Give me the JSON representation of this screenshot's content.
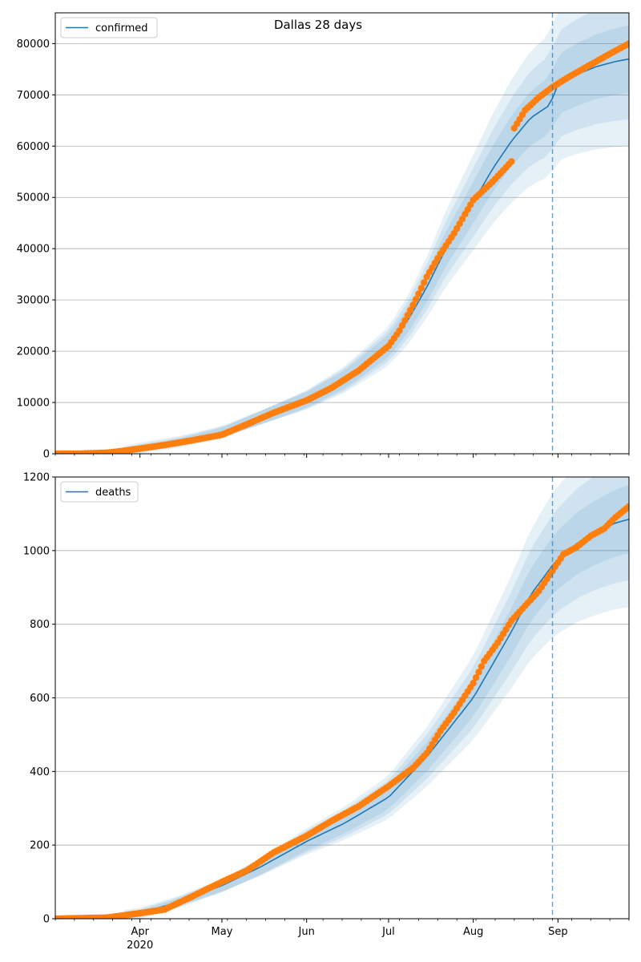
{
  "colors": {
    "model_line": "#1f77b4",
    "band": "#1f77b4",
    "observed_points": "#ff7f0e",
    "grid": "#b0b0b0",
    "forecast_marker": "#1f77b4"
  },
  "chart_data": [
    {
      "type": "line",
      "title": "Dallas 28 days",
      "legend_position": "top-left",
      "grid": "horizontal",
      "x_start": "2020-03-01",
      "x_end": "2020-09-27",
      "forecast_date": "2020-08-30",
      "ylim": [
        0,
        86000
      ],
      "y_ticks": [
        0,
        10000,
        20000,
        30000,
        40000,
        50000,
        60000,
        70000,
        80000
      ],
      "x_tick_labels": [
        {
          "date": "2020-04-01",
          "label": "Apr"
        },
        {
          "date": "2020-05-01",
          "label": "May"
        },
        {
          "date": "2020-06-01",
          "label": "Jun"
        },
        {
          "date": "2020-07-01",
          "label": "Jul"
        },
        {
          "date": "2020-08-01",
          "label": "Aug"
        },
        {
          "date": "2020-09-01",
          "label": "Sep"
        }
      ],
      "year_label": "",
      "series": [
        {
          "name": "confirmed",
          "kind": "model",
          "points": [
            [
              "2020-03-01",
              0
            ],
            [
              "2020-03-15",
              80
            ],
            [
              "2020-03-25",
              400
            ],
            [
              "2020-04-01",
              1100
            ],
            [
              "2020-04-15",
              2300
            ],
            [
              "2020-05-01",
              4200
            ],
            [
              "2020-05-15",
              7000
            ],
            [
              "2020-06-01",
              10500
            ],
            [
              "2020-06-15",
              14500
            ],
            [
              "2020-07-01",
              21000
            ],
            [
              "2020-07-08",
              26000
            ],
            [
              "2020-07-15",
              32500
            ],
            [
              "2020-07-22",
              40000
            ],
            [
              "2020-08-01",
              49000
            ],
            [
              "2020-08-08",
              55500
            ],
            [
              "2020-08-15",
              61000
            ],
            [
              "2020-08-22",
              65500
            ],
            [
              "2020-08-29",
              68000
            ],
            [
              "2020-09-01",
              72000
            ],
            [
              "2020-09-08",
              74000
            ],
            [
              "2020-09-15",
              75500
            ],
            [
              "2020-09-22",
              76500
            ],
            [
              "2020-09-27",
              77000
            ]
          ]
        },
        {
          "name": "",
          "kind": "observed",
          "points": [
            [
              "2020-03-01",
              0
            ],
            [
              "2020-03-10",
              20
            ],
            [
              "2020-03-20",
              200
            ],
            [
              "2020-03-25",
              500
            ],
            [
              "2020-04-01",
              1000
            ],
            [
              "2020-04-10",
              1700
            ],
            [
              "2020-04-20",
              2600
            ],
            [
              "2020-05-01",
              3700
            ],
            [
              "2020-05-10",
              5700
            ],
            [
              "2020-05-20",
              8000
            ],
            [
              "2020-06-01",
              10400
            ],
            [
              "2020-06-10",
              12800
            ],
            [
              "2020-06-20",
              16200
            ],
            [
              "2020-07-01",
              21000
            ],
            [
              "2020-07-05",
              24000
            ],
            [
              "2020-07-10",
              29000
            ],
            [
              "2020-07-15",
              34500
            ],
            [
              "2020-07-20",
              39000
            ],
            [
              "2020-07-25",
              43000
            ],
            [
              "2020-08-01",
              49500
            ],
            [
              "2020-08-08",
              53000
            ],
            [
              "2020-08-15",
              57000
            ],
            [
              "2020-08-16",
              63500
            ],
            [
              "2020-08-20",
              67000
            ],
            [
              "2020-08-25",
              69500
            ],
            [
              "2020-08-30",
              71500
            ],
            [
              "2020-09-05",
              73500
            ],
            [
              "2020-09-10",
              75000
            ],
            [
              "2020-09-15",
              76500
            ],
            [
              "2020-09-20",
              78000
            ],
            [
              "2020-09-27",
              80000
            ]
          ]
        }
      ],
      "bands": {
        "outer_end": 86000,
        "widths": [
          0.06,
          0.12,
          0.18
        ]
      }
    },
    {
      "type": "line",
      "title": "",
      "legend_position": "top-left",
      "grid": "horizontal",
      "x_start": "2020-03-01",
      "x_end": "2020-09-27",
      "forecast_date": "2020-08-30",
      "ylim": [
        0,
        1200
      ],
      "y_ticks": [
        0,
        200,
        400,
        600,
        800,
        1000,
        1200
      ],
      "x_tick_labels": [
        {
          "date": "2020-04-01",
          "label": "Apr"
        },
        {
          "date": "2020-05-01",
          "label": "May"
        },
        {
          "date": "2020-06-01",
          "label": "Jun"
        },
        {
          "date": "2020-07-01",
          "label": "Jul"
        },
        {
          "date": "2020-08-01",
          "label": "Aug"
        },
        {
          "date": "2020-09-01",
          "label": "Sep"
        }
      ],
      "year_label": "2020",
      "series": [
        {
          "name": "deaths",
          "kind": "model",
          "points": [
            [
              "2020-03-01",
              0
            ],
            [
              "2020-03-20",
              3
            ],
            [
              "2020-04-01",
              15
            ],
            [
              "2020-04-15",
              45
            ],
            [
              "2020-05-01",
              90
            ],
            [
              "2020-05-15",
              140
            ],
            [
              "2020-06-01",
              210
            ],
            [
              "2020-06-15",
              260
            ],
            [
              "2020-07-01",
              330
            ],
            [
              "2020-07-15",
              440
            ],
            [
              "2020-08-01",
              600
            ],
            [
              "2020-08-15",
              780
            ],
            [
              "2020-08-22",
              880
            ],
            [
              "2020-08-30",
              960
            ],
            [
              "2020-09-01",
              975
            ],
            [
              "2020-09-08",
              1020
            ],
            [
              "2020-09-15",
              1050
            ],
            [
              "2020-09-22",
              1075
            ],
            [
              "2020-09-27",
              1085
            ]
          ]
        },
        {
          "name": "",
          "kind": "observed",
          "points": [
            [
              "2020-03-01",
              0
            ],
            [
              "2020-03-20",
              3
            ],
            [
              "2020-04-01",
              15
            ],
            [
              "2020-04-10",
              25
            ],
            [
              "2020-04-20",
              60
            ],
            [
              "2020-05-01",
              100
            ],
            [
              "2020-05-10",
              130
            ],
            [
              "2020-05-20",
              180
            ],
            [
              "2020-06-01",
              225
            ],
            [
              "2020-06-10",
              265
            ],
            [
              "2020-06-20",
              305
            ],
            [
              "2020-07-01",
              360
            ],
            [
              "2020-07-10",
              410
            ],
            [
              "2020-07-15",
              450
            ],
            [
              "2020-07-20",
              510
            ],
            [
              "2020-07-25",
              560
            ],
            [
              "2020-08-01",
              640
            ],
            [
              "2020-08-05",
              700
            ],
            [
              "2020-08-10",
              750
            ],
            [
              "2020-08-15",
              810
            ],
            [
              "2020-08-20",
              850
            ],
            [
              "2020-08-25",
              890
            ],
            [
              "2020-08-30",
              945
            ],
            [
              "2020-09-03",
              990
            ],
            [
              "2020-09-08",
              1010
            ],
            [
              "2020-09-13",
              1040
            ],
            [
              "2020-09-18",
              1060
            ],
            [
              "2020-09-22",
              1090
            ],
            [
              "2020-09-27",
              1120
            ]
          ]
        }
      ],
      "bands": {
        "outer_end": 1200,
        "widths": [
          0.06,
          0.12,
          0.18
        ]
      }
    }
  ]
}
